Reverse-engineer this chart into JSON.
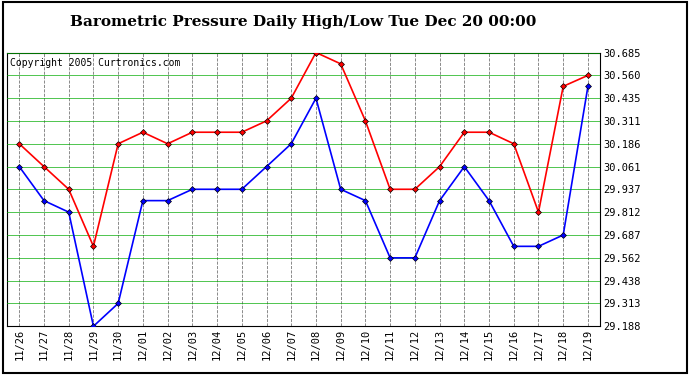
{
  "title": "Barometric Pressure Daily High/Low Tue Dec 20 00:00",
  "copyright": "Copyright 2005 Curtronics.com",
  "labels": [
    "11/26",
    "11/27",
    "11/28",
    "11/29",
    "11/30",
    "12/01",
    "12/02",
    "12/03",
    "12/04",
    "12/05",
    "12/06",
    "12/07",
    "12/08",
    "12/09",
    "12/10",
    "12/11",
    "12/12",
    "12/13",
    "12/14",
    "12/15",
    "12/16",
    "12/17",
    "12/18",
    "12/19"
  ],
  "high_values": [
    30.186,
    30.061,
    29.937,
    29.625,
    30.186,
    30.249,
    30.186,
    30.249,
    30.249,
    30.249,
    30.311,
    30.435,
    30.685,
    30.623,
    30.311,
    29.937,
    29.937,
    30.061,
    30.249,
    30.249,
    30.186,
    29.812,
    30.5,
    30.56
  ],
  "low_values": [
    30.061,
    29.875,
    29.812,
    29.188,
    29.313,
    29.875,
    29.875,
    29.937,
    29.937,
    29.937,
    30.061,
    30.186,
    30.435,
    29.937,
    29.875,
    29.562,
    29.562,
    29.875,
    30.061,
    29.875,
    29.625,
    29.625,
    29.687,
    30.5
  ],
  "ylim_min": 29.188,
  "ylim_max": 30.685,
  "yticks": [
    30.685,
    30.56,
    30.435,
    30.311,
    30.186,
    30.061,
    29.937,
    29.812,
    29.687,
    29.562,
    29.438,
    29.313,
    29.188
  ],
  "high_color": "#ff0000",
  "low_color": "#0000ff",
  "bg_color": "#ffffff",
  "grid_color": "#00cc00",
  "title_fontsize": 11,
  "tick_fontsize": 7.5,
  "copyright_fontsize": 7
}
